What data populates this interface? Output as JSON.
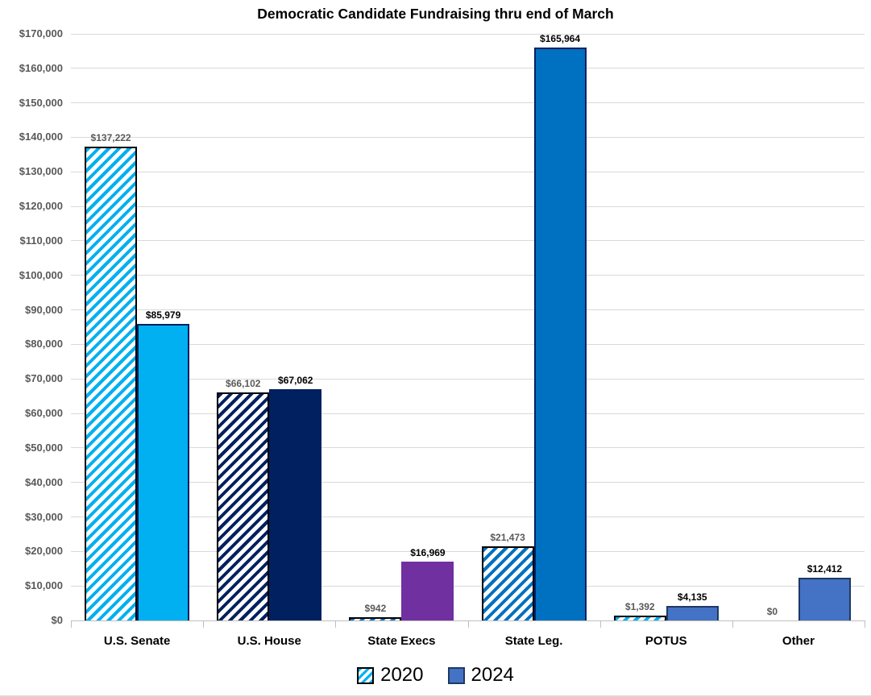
{
  "page": {
    "background": "#ffffff",
    "bottom_rule_color": "#d9d9d9"
  },
  "chart_data": {
    "type": "bar",
    "title": "Democratic Candidate Fundraising thru end of March",
    "categories": [
      "U.S. Senate",
      "U.S. House",
      "State Execs",
      "State Leg.",
      "POTUS",
      "Other"
    ],
    "series": [
      {
        "name": "2020",
        "fill_style": "hatched",
        "values": [
          137222,
          66102,
          942,
          21473,
          1392,
          0
        ],
        "labels": [
          "$137,222",
          "$66,102",
          "$942",
          "$21,473",
          "$1,392",
          "$0"
        ],
        "label_color": "#595959",
        "hatch_colors": [
          "#00b0f0",
          "#002060",
          "#0070c0",
          "#0070c0",
          "#00b0f0",
          "#00b0f0"
        ],
        "border_color": "#000000"
      },
      {
        "name": "2024",
        "fill_style": "solid",
        "values": [
          85979,
          67062,
          16969,
          165964,
          4135,
          12412
        ],
        "labels": [
          "$85,979",
          "$67,062",
          "$16,969",
          "$165,964",
          "$4,135",
          "$12,412"
        ],
        "label_color": "#000000",
        "fill_colors": [
          "#00b0f0",
          "#002060",
          "#7030a0",
          "#0070c0",
          "#4472c4",
          "#4472c4"
        ],
        "border_colors": [
          "#002060",
          "#002060",
          "#7030a0",
          "#002060",
          "#1f3864",
          "#1f3864"
        ]
      }
    ],
    "axis": {
      "ylim": [
        0,
        170000
      ],
      "y_step": 10000,
      "y_tick_labels": [
        "$0",
        "$10,000",
        "$20,000",
        "$30,000",
        "$40,000",
        "$50,000",
        "$60,000",
        "$70,000",
        "$80,000",
        "$90,000",
        "$100,000",
        "$110,000",
        "$120,000",
        "$130,000",
        "$140,000",
        "$150,000",
        "$160,000",
        "$170,000"
      ],
      "grid": true,
      "grid_color": "#d9d9d9",
      "axis_color": "#bfbfbf",
      "tick_label_color": "#595959"
    },
    "legend": {
      "position": "bottom",
      "entries": [
        {
          "label": "2020",
          "swatch": "hatched",
          "swatch_color": "#00b0f0",
          "swatch_border": "#000000"
        },
        {
          "label": "2024",
          "swatch": "solid",
          "swatch_color": "#4472c4",
          "swatch_border": "#1f3864"
        }
      ]
    }
  }
}
